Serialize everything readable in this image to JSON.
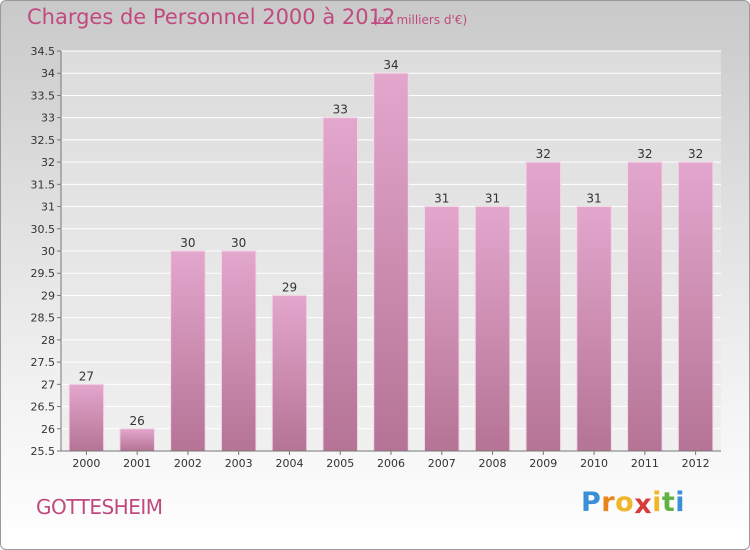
{
  "header": {
    "title": "Charges de Personnel 2000 à 2012",
    "subtitle": "(en milliers d'€)"
  },
  "footer": {
    "commune": "GOTTESHEIM",
    "logo_letters": [
      "P",
      "r",
      "o",
      "x",
      "i",
      "t",
      "i"
    ]
  },
  "colors": {
    "title": "#c04a7f",
    "bar_top": "#e3a6cd",
    "bar_bottom": "#b57495",
    "logo": [
      "#3b8fd6",
      "#e9851d",
      "#f1b52a",
      "#d93a3a",
      "#f1b52a",
      "#5fb342",
      "#3b8fd6"
    ]
  },
  "chart_data": {
    "type": "bar",
    "categories": [
      "2000",
      "2001",
      "2002",
      "2003",
      "2004",
      "2005",
      "2006",
      "2007",
      "2008",
      "2009",
      "2010",
      "2011",
      "2012"
    ],
    "values": [
      27,
      26,
      30,
      30,
      29,
      33,
      34,
      31,
      31,
      32,
      31,
      32,
      32
    ],
    "ylim": [
      25.5,
      34.5
    ],
    "yticks": [
      "25.5",
      "26",
      "26.5",
      "27",
      "27.5",
      "28",
      "28.5",
      "29",
      "29.5",
      "30",
      "30.5",
      "31",
      "31.5",
      "32",
      "32.5",
      "33",
      "33.5",
      "34",
      "34.5"
    ],
    "grid": true,
    "legend": "none"
  }
}
